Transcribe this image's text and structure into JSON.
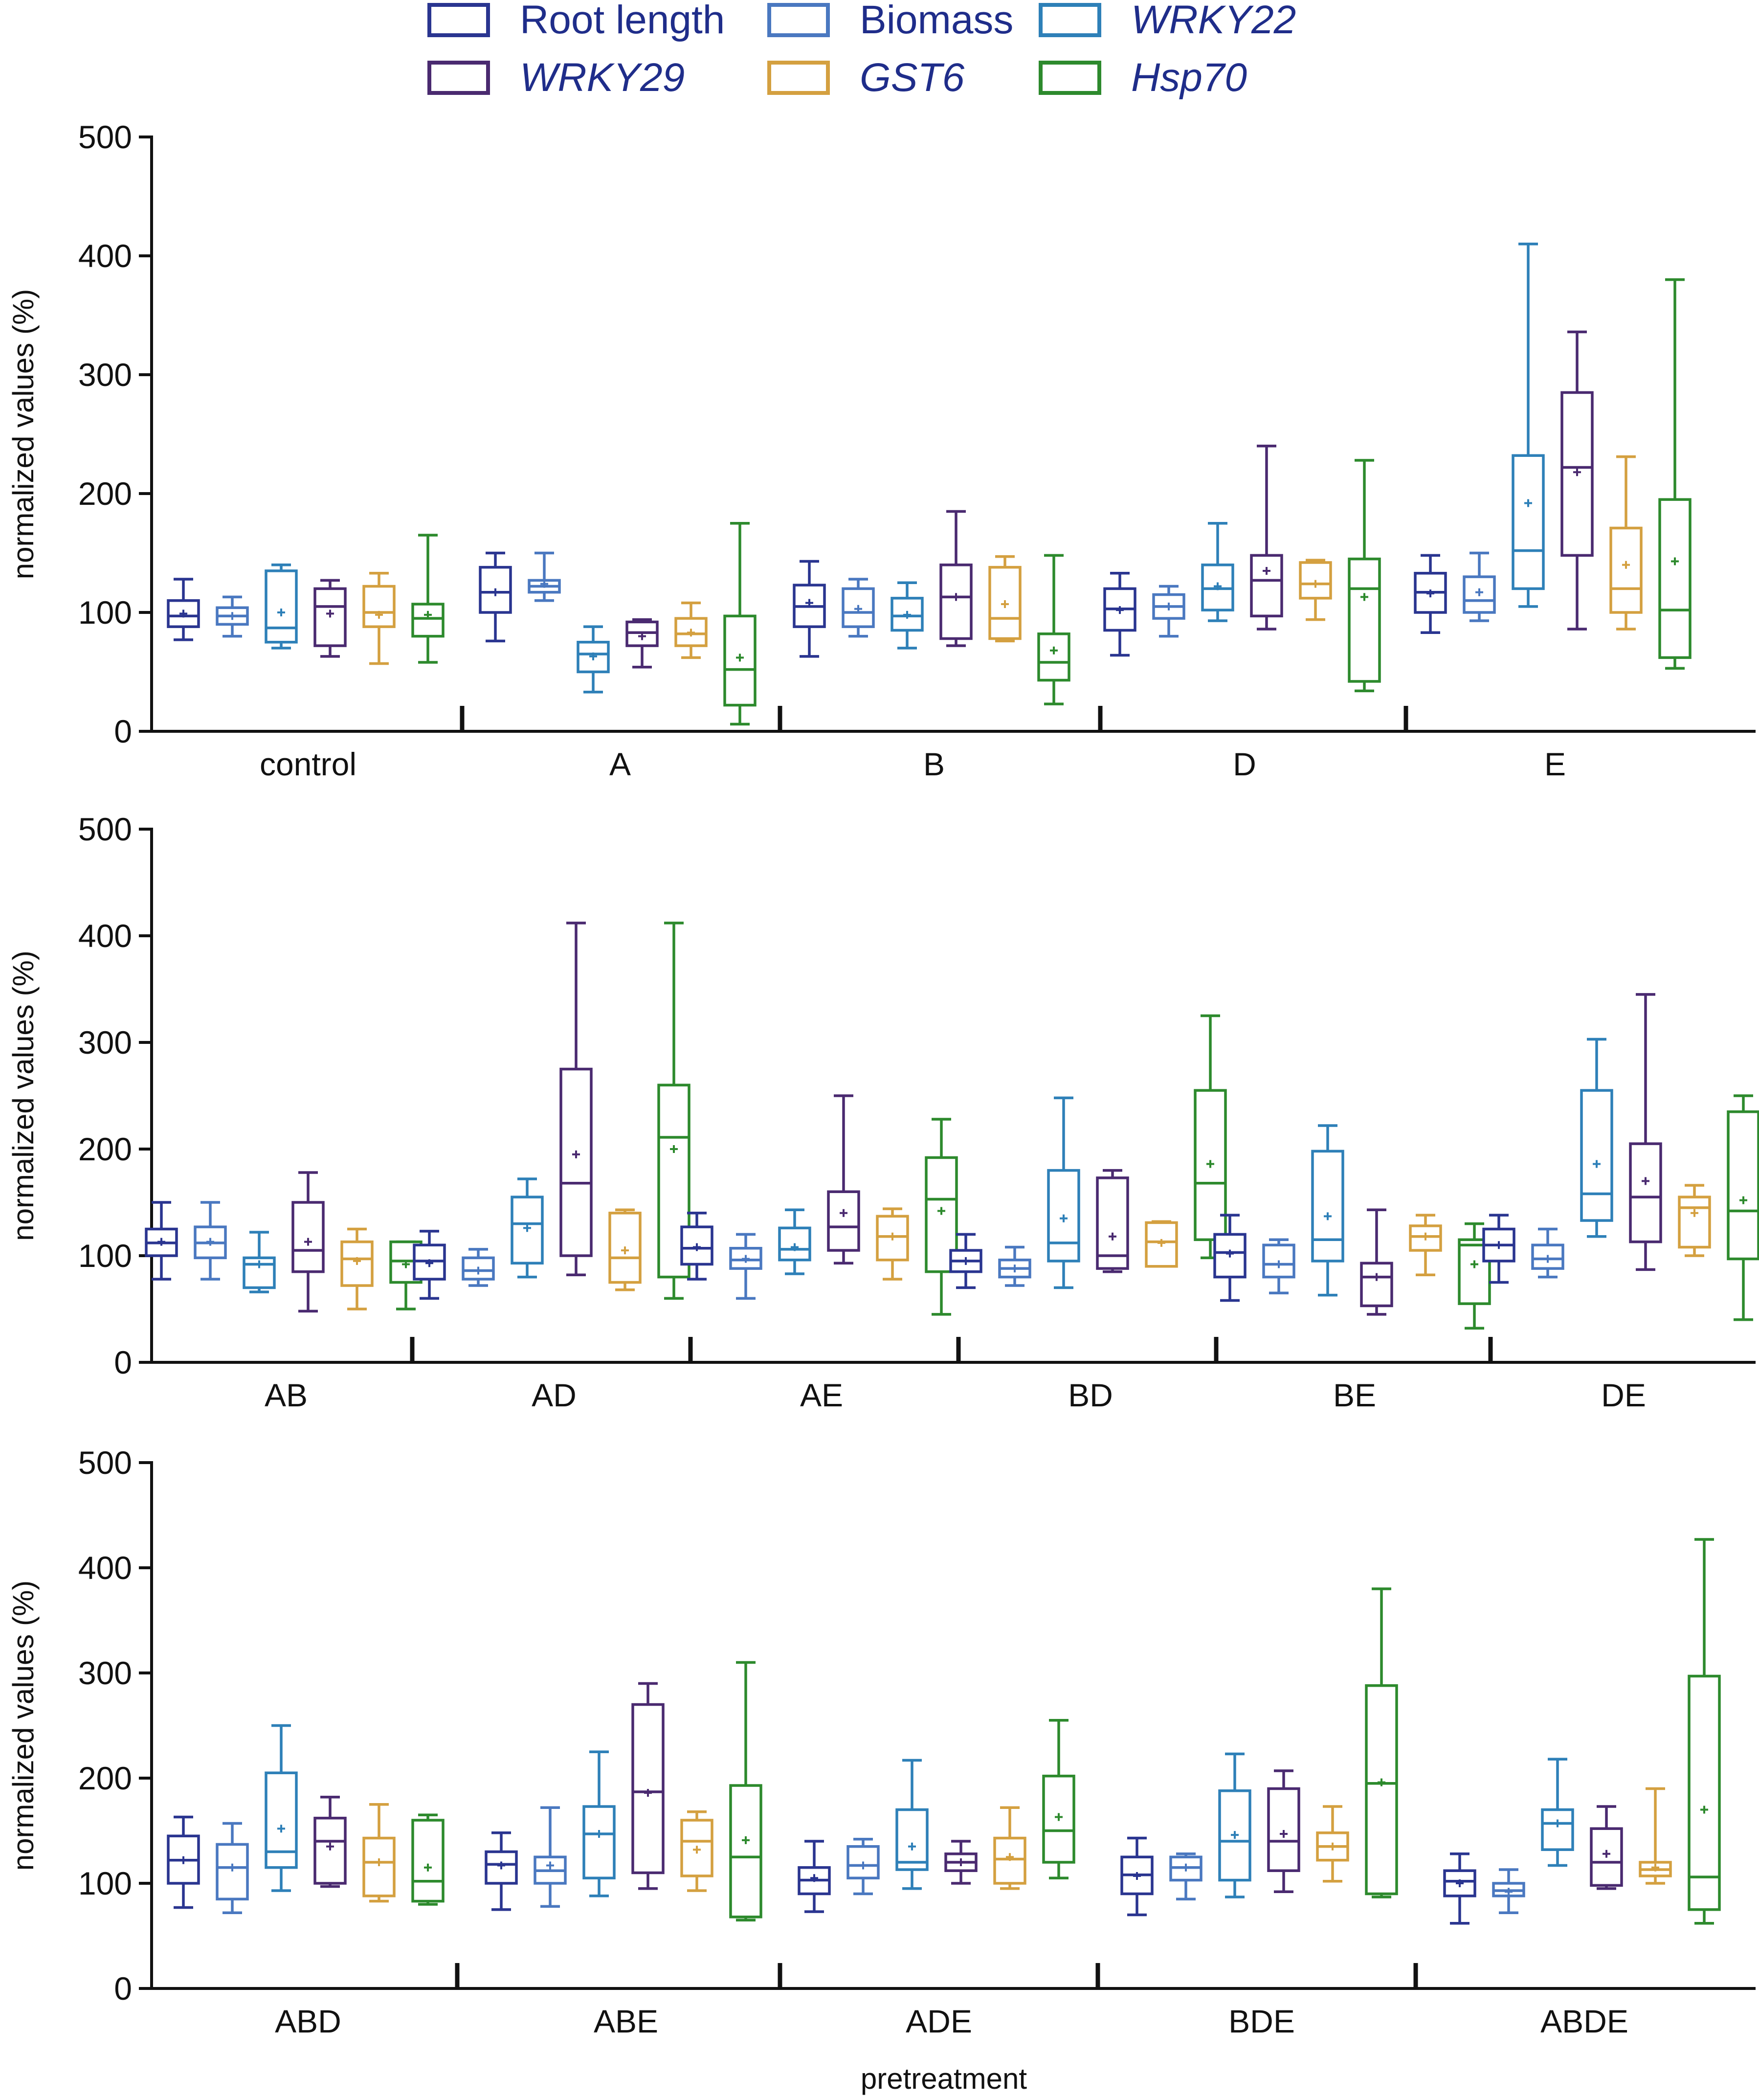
{
  "legend": {
    "entries": [
      {
        "key": "root",
        "label": "Root length",
        "italic": false,
        "color": "#2a3590"
      },
      {
        "key": "biomass",
        "label": "Biomass",
        "italic": false,
        "color": "#4a78c0"
      },
      {
        "key": "wrky22",
        "label": "WRKY22",
        "italic": true,
        "color": "#2e80b8"
      },
      {
        "key": "wrky29",
        "label": "WRKY29",
        "italic": true,
        "color": "#4a2a70"
      },
      {
        "key": "gst6",
        "label": "GST6",
        "italic": true,
        "color": "#d4a040"
      },
      {
        "key": "hsp70",
        "label": "Hsp70",
        "italic": true,
        "color": "#2d8a2d"
      }
    ]
  },
  "axis": {
    "ylabel": "normalized values (%)",
    "xlabel": "pretreatment",
    "yticks": [
      "0",
      "100",
      "200",
      "300",
      "400",
      "500"
    ]
  },
  "chart_data": [
    {
      "type": "box",
      "panel": "top",
      "ylabel": "normalized values (%)",
      "ylim": [
        0,
        500
      ],
      "series": [
        "Root length",
        "Biomass",
        "WRKY22",
        "WRKY29",
        "GST6",
        "Hsp70"
      ],
      "groups": [
        {
          "label": "control",
          "boxes": [
            [
              77,
              88,
              97,
              110,
              128,
              99
            ],
            [
              80,
              90,
              97,
              104,
              113,
              97
            ],
            [
              70,
              75,
              87,
              135,
              140,
              100
            ],
            [
              63,
              72,
              105,
              120,
              127,
              99
            ],
            [
              57,
              88,
              100,
              122,
              133,
              98
            ],
            [
              58,
              80,
              95,
              107,
              165,
              98
            ]
          ]
        },
        {
          "label": "A",
          "boxes": [
            [
              76,
              100,
              117,
              138,
              150,
              117
            ],
            [
              110,
              117,
              122,
              127,
              150,
              124
            ],
            [
              33,
              50,
              65,
              75,
              88,
              63
            ],
            [
              54,
              72,
              83,
              92,
              94,
              80
            ],
            [
              62,
              72,
              82,
              95,
              108,
              83
            ],
            [
              6,
              22,
              52,
              97,
              175,
              62
            ]
          ]
        },
        {
          "label": "B",
          "boxes": [
            [
              63,
              88,
              105,
              123,
              143,
              108
            ],
            [
              80,
              88,
              100,
              120,
              128,
              103
            ],
            [
              70,
              85,
              97,
              112,
              125,
              98
            ],
            [
              72,
              78,
              113,
              140,
              185,
              113
            ],
            [
              76,
              78,
              95,
              138,
              147,
              107
            ],
            [
              23,
              43,
              58,
              82,
              148,
              68
            ]
          ]
        },
        {
          "label": "D",
          "boxes": [
            [
              64,
              85,
              103,
              120,
              133,
              102
            ],
            [
              80,
              95,
              105,
              115,
              122,
              105
            ],
            [
              93,
              102,
              120,
              140,
              175,
              122
            ],
            [
              86,
              97,
              127,
              148,
              240,
              135
            ],
            [
              94,
              112,
              124,
              142,
              144,
              124
            ],
            [
              34,
              42,
              120,
              145,
              228,
              113
            ]
          ]
        },
        {
          "label": "E",
          "boxes": [
            [
              83,
              100,
              117,
              133,
              148,
              116
            ],
            [
              93,
              100,
              110,
              130,
              150,
              117
            ],
            [
              105,
              120,
              152,
              232,
              410,
              192
            ],
            [
              86,
              148,
              222,
              285,
              336,
              218
            ],
            [
              86,
              100,
              120,
              171,
              231,
              140
            ],
            [
              53,
              62,
              102,
              195,
              380,
              143
            ]
          ]
        }
      ]
    },
    {
      "type": "box",
      "panel": "middle",
      "ylabel": "normalized values (%)",
      "ylim": [
        0,
        500
      ],
      "series": [
        "Root length",
        "Biomass",
        "WRKY22",
        "WRKY29",
        "GST6",
        "Hsp70"
      ],
      "groups": [
        {
          "label": "AB",
          "boxes": [
            [
              78,
              100,
              112,
              125,
              150,
              113
            ],
            [
              78,
              98,
              112,
              127,
              150,
              113
            ],
            [
              66,
              70,
              92,
              98,
              122,
              92
            ],
            [
              48,
              85,
              105,
              150,
              178,
              113
            ],
            [
              50,
              72,
              97,
              113,
              125,
              95
            ],
            [
              50,
              75,
              95,
              113,
              113,
              92
            ]
          ]
        },
        {
          "label": "AD",
          "boxes": [
            [
              60,
              78,
              95,
              110,
              123,
              93
            ],
            [
              72,
              78,
              86,
              98,
              106,
              86
            ],
            [
              80,
              93,
              130,
              155,
              172,
              126
            ],
            [
              82,
              100,
              168,
              275,
              412,
              195
            ],
            [
              68,
              75,
              98,
              140,
              143,
              105
            ],
            [
              60,
              80,
              211,
              260,
              412,
              200
            ]
          ]
        },
        {
          "label": "AE",
          "boxes": [
            [
              78,
              92,
              107,
              127,
              140,
              108
            ],
            [
              60,
              88,
              96,
              107,
              120,
              97
            ],
            [
              83,
              96,
              106,
              126,
              143,
              108
            ],
            [
              93,
              105,
              127,
              160,
              250,
              140
            ],
            [
              78,
              96,
              118,
              137,
              144,
              118
            ],
            [
              45,
              85,
              153,
              192,
              228,
              142
            ]
          ]
        },
        {
          "label": "BD",
          "boxes": [
            [
              70,
              85,
              95,
              105,
              120,
              95
            ],
            [
              72,
              80,
              88,
              96,
              108,
              88
            ],
            [
              70,
              95,
              112,
              180,
              248,
              135
            ],
            [
              85,
              88,
              100,
              173,
              180,
              118
            ],
            [
              90,
              90,
              113,
              131,
              132,
              112
            ],
            [
              98,
              115,
              168,
              255,
              325,
              186
            ]
          ]
        },
        {
          "label": "BE",
          "boxes": [
            [
              58,
              80,
              103,
              120,
              138,
              102
            ],
            [
              65,
              80,
              92,
              110,
              115,
              92
            ],
            [
              63,
              95,
              115,
              198,
              222,
              137
            ],
            [
              45,
              53,
              80,
              93,
              143,
              80
            ],
            [
              82,
              105,
              118,
              128,
              138,
              118
            ],
            [
              32,
              55,
              110,
              115,
              130,
              92
            ]
          ]
        },
        {
          "label": "DE",
          "boxes": [
            [
              75,
              95,
              110,
              125,
              138,
              110
            ],
            [
              80,
              88,
              97,
              110,
              125,
              97
            ],
            [
              118,
              133,
              158,
              255,
              303,
              186
            ],
            [
              87,
              113,
              155,
              205,
              345,
              170
            ],
            [
              100,
              108,
              145,
              155,
              166,
              140
            ],
            [
              40,
              97,
              142,
              235,
              250,
              152
            ]
          ]
        }
      ]
    },
    {
      "type": "box",
      "panel": "bottom",
      "ylabel": "normalized values (%)",
      "xlabel": "pretreatment",
      "ylim": [
        0,
        500
      ],
      "series": [
        "Root length",
        "Biomass",
        "WRKY22",
        "WRKY29",
        "GST6",
        "Hsp70"
      ],
      "groups": [
        {
          "label": "ABD",
          "boxes": [
            [
              77,
              100,
              122,
              145,
              163,
              122
            ],
            [
              72,
              85,
              115,
              137,
              157,
              115
            ],
            [
              93,
              115,
              130,
              205,
              250,
              152
            ],
            [
              97,
              100,
              140,
              162,
              182,
              135
            ],
            [
              83,
              88,
              120,
              143,
              175,
              120
            ],
            [
              80,
              83,
              102,
              160,
              165,
              115
            ]
          ]
        },
        {
          "label": "ABE",
          "boxes": [
            [
              75,
              100,
              118,
              130,
              148,
              117
            ],
            [
              78,
              100,
              112,
              125,
              172,
              117
            ],
            [
              88,
              105,
              147,
              173,
              225,
              147
            ],
            [
              95,
              110,
              187,
              270,
              290,
              186
            ],
            [
              93,
              107,
              140,
              160,
              168,
              132
            ],
            [
              65,
              68,
              125,
              193,
              310,
              141
            ]
          ]
        },
        {
          "label": "ADE",
          "boxes": [
            [
              73,
              90,
              103,
              115,
              140,
              105
            ],
            [
              90,
              105,
              117,
              135,
              142,
              117
            ],
            [
              95,
              113,
              120,
              170,
              217,
              135
            ],
            [
              100,
              112,
              120,
              128,
              140,
              120
            ],
            [
              95,
              100,
              123,
              143,
              172,
              125
            ],
            [
              105,
              120,
              150,
              202,
              255,
              163
            ]
          ]
        },
        {
          "label": "BDE",
          "boxes": [
            [
              70,
              90,
              108,
              125,
              143,
              107
            ],
            [
              85,
              103,
              115,
              125,
              128,
              115
            ],
            [
              87,
              103,
              140,
              188,
              223,
              146
            ],
            [
              92,
              112,
              140,
              190,
              207,
              147
            ],
            [
              102,
              122,
              135,
              148,
              173,
              135
            ],
            [
              87,
              90,
              195,
              288,
              380,
              196
            ]
          ]
        },
        {
          "label": "ABDE",
          "boxes": [
            [
              62,
              88,
              102,
              112,
              128,
              100
            ],
            [
              72,
              88,
              93,
              100,
              113,
              92
            ],
            [
              117,
              132,
              157,
              170,
              218,
              157
            ],
            [
              95,
              98,
              120,
              152,
              173,
              128
            ],
            [
              100,
              107,
              113,
              120,
              190,
              115
            ],
            [
              62,
              75,
              106,
              297,
              427,
              170
            ]
          ]
        }
      ]
    }
  ]
}
